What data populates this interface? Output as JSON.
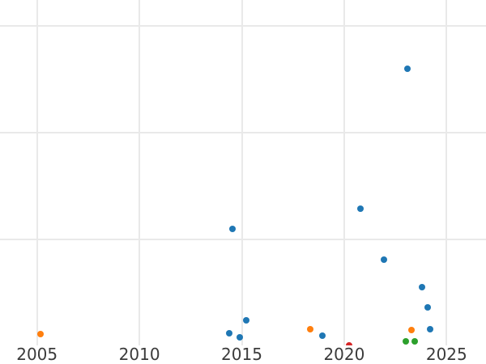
{
  "chart_data": {
    "type": "scatter",
    "title": "",
    "xlabel": "",
    "ylabel": "",
    "x_tick_labels": [
      "2005",
      "2010",
      "2015",
      "2020",
      "2025"
    ],
    "x_ticks": [
      2005,
      2010,
      2015,
      2020,
      2025
    ],
    "xlim": [
      2003.2,
      2026.9
    ],
    "ylim": [
      0,
      3.24
    ],
    "y_gridline_values": [
      1,
      2,
      3
    ],
    "y_axis_tick_labels_visible": false,
    "y_unit": "gridline-units (0 = bottom axis edge, 1 per gridline spacing; numeric y labels cropped out of view)",
    "grid": true,
    "legend": false,
    "series": [
      {
        "name": "blue",
        "color": "#1f77b4",
        "points": [
          [
            2014.55,
            1.1
          ],
          [
            2014.4,
            0.12
          ],
          [
            2014.9,
            0.08
          ],
          [
            2015.22,
            0.24
          ],
          [
            2018.95,
            0.1
          ],
          [
            2020.8,
            1.29
          ],
          [
            2021.95,
            0.81
          ],
          [
            2023.1,
            2.6
          ],
          [
            2023.8,
            0.55
          ],
          [
            2024.08,
            0.36
          ],
          [
            2024.2,
            0.16
          ]
        ]
      },
      {
        "name": "orange",
        "color": "#ff7f0e",
        "points": [
          [
            2005.15,
            0.11
          ],
          [
            2018.35,
            0.16
          ],
          [
            2023.3,
            0.15
          ]
        ]
      },
      {
        "name": "green",
        "color": "#2ca02c",
        "points": [
          [
            2023.0,
            0.04
          ],
          [
            2023.45,
            0.04
          ]
        ]
      },
      {
        "name": "red",
        "color": "#d62728",
        "points": [
          [
            2020.25,
            0.005
          ]
        ]
      }
    ]
  },
  "colors": {
    "background": "#ffffff",
    "gridline": "#e9e9e9",
    "tick_label": "#3b3b3b"
  }
}
